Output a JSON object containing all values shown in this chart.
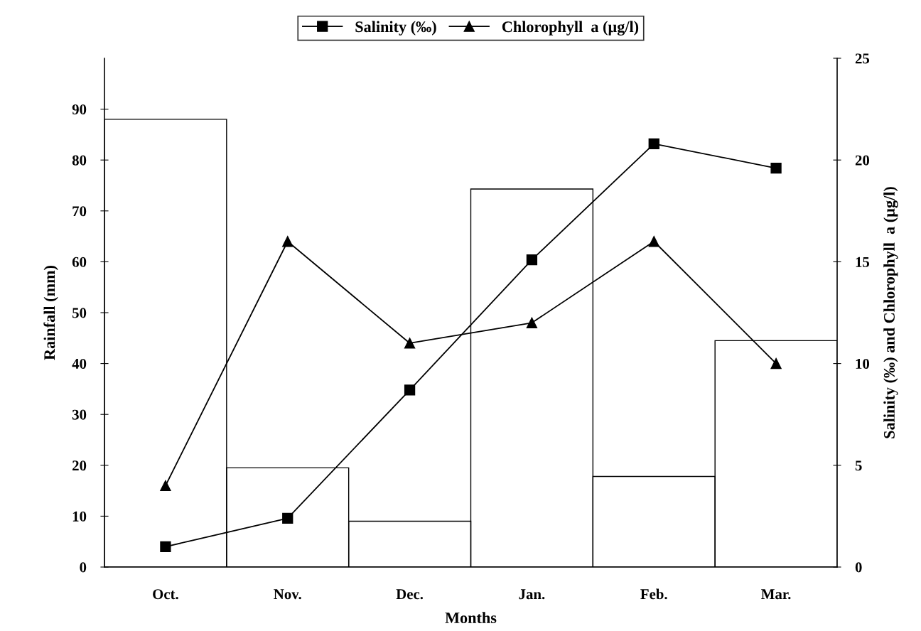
{
  "chart_data": {
    "type": "bar",
    "xlabel": "Months",
    "ylabel": "Rainfall (mm)",
    "y2label": "Salinity (‰) and Chlorophyll  a (µg/l)",
    "categories": [
      "Oct.",
      "Nov.",
      "Dec.",
      "Jan.",
      "Feb.",
      "Mar."
    ],
    "series": [
      {
        "color": "#000000",
        "values": [
          88,
          19.5,
          9,
          74.3,
          17.8,
          44.5
        ]
      },
      {
        "type": "line",
        "name": "Salinity (‰)",
        "axis": "y2",
        "marker": "square",
        "color": "#000000",
        "values": [
          1,
          2.4,
          8.7,
          15.1,
          20.8,
          19.6
        ]
      },
      {
        "type": "line",
        "name": "Chlorophyll  a (µg/l)",
        "axis": "y2",
        "marker": "triangle",
        "color": "#000000",
        "values": [
          4,
          16,
          11,
          12,
          16,
          10
        ]
      }
    ],
    "ylim": [
      0,
      100
    ],
    "yticks": [
      0,
      10,
      20,
      30,
      40,
      50,
      60,
      70,
      80,
      90
    ],
    "y2lim": [
      0,
      25
    ],
    "y2ticks": [
      0,
      5,
      10,
      15,
      20,
      25
    ],
    "grid": false,
    "legend": "top",
    "line_style": "solid"
  }
}
